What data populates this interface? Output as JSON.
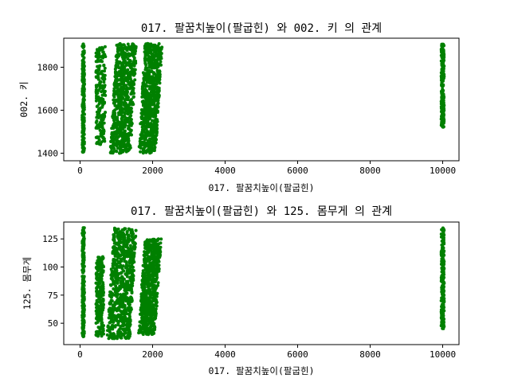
{
  "chart_data": [
    {
      "type": "scatter",
      "title": "017. 팔꿈치높이(팔굽힌)  와 002. 키 의 관계",
      "xlabel": "017. 팔꿈치높이(팔굽힌)",
      "ylabel": "002. 키",
      "xlim": [
        -450,
        10450
      ],
      "ylim": [
        1365,
        1935
      ],
      "xticks": [
        0,
        2000,
        4000,
        6000,
        8000,
        10000
      ],
      "yticks": [
        1400,
        1600,
        1800
      ],
      "color": "#008000",
      "grid": false,
      "clusters": [
        {
          "x": [
            60,
            120
          ],
          "y": [
            1400,
            1910
          ],
          "note": "near-vertical column"
        },
        {
          "x": [
            440,
            700
          ],
          "y": [
            1440,
            1900
          ],
          "note": "diagonal band"
        },
        {
          "x": [
            800,
            1600
          ],
          "y": [
            1400,
            1910
          ],
          "note": "dense diagonal bands"
        },
        {
          "x": [
            1600,
            2280
          ],
          "y": [
            1400,
            1910
          ],
          "note": "diagonal band"
        },
        {
          "x": [
            9960,
            10040
          ],
          "y": [
            1520,
            1910
          ],
          "note": "vertical column at ~10000"
        }
      ]
    },
    {
      "type": "scatter",
      "title": "017. 팔꿈치높이(팔굽힌)  와 125. 몸무게 의 관계",
      "xlabel": "017. 팔꿈치높이(팔굽힌)",
      "ylabel": "125. 몸무게",
      "xlim": [
        -450,
        10450
      ],
      "ylim": [
        31,
        140
      ],
      "xticks": [
        0,
        2000,
        4000,
        6000,
        8000,
        10000
      ],
      "yticks": [
        50,
        75,
        100,
        125
      ],
      "color": "#008000",
      "grid": false,
      "clusters": [
        {
          "x": [
            60,
            120
          ],
          "y": [
            38,
            135
          ],
          "note": "near-vertical column"
        },
        {
          "x": [
            440,
            650
          ],
          "y": [
            38,
            110
          ]
        },
        {
          "x": [
            700,
            1600
          ],
          "y": [
            36,
            135
          ],
          "note": "dense main cloud"
        },
        {
          "x": [
            1600,
            2250
          ],
          "y": [
            40,
            125
          ]
        },
        {
          "x": [
            9960,
            10040
          ],
          "y": [
            45,
            135
          ],
          "note": "vertical column at ~10000"
        }
      ]
    }
  ]
}
